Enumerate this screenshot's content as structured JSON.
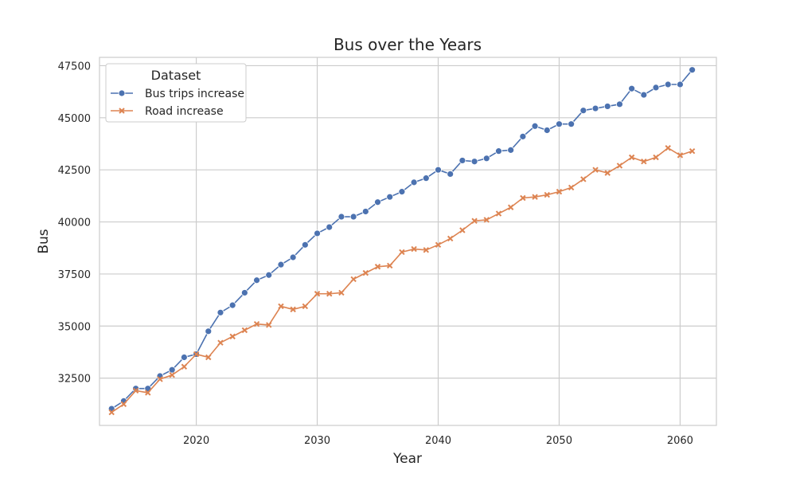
{
  "chart_data": {
    "type": "line",
    "title": "Bus over the Years",
    "xlabel": "Year",
    "ylabel": "Bus",
    "xlim": [
      2012,
      2063
    ],
    "ylim": [
      30230,
      47900
    ],
    "x_ticks": [
      2020,
      2030,
      2040,
      2050,
      2060
    ],
    "y_ticks": [
      32500,
      35000,
      37500,
      40000,
      42500,
      45000,
      47500
    ],
    "grid": true,
    "legend": {
      "title": "Dataset",
      "placement": "top-left"
    },
    "x": [
      2013,
      2014,
      2015,
      2016,
      2017,
      2018,
      2019,
      2020,
      2021,
      2022,
      2023,
      2024,
      2025,
      2026,
      2027,
      2028,
      2029,
      2030,
      2031,
      2032,
      2033,
      2034,
      2035,
      2036,
      2037,
      2038,
      2039,
      2040,
      2041,
      2042,
      2043,
      2044,
      2045,
      2046,
      2047,
      2048,
      2049,
      2050,
      2051,
      2052,
      2053,
      2054,
      2055,
      2056,
      2057,
      2058,
      2059,
      2060,
      2061
    ],
    "series": [
      {
        "name": "Bus trips increase",
        "color": "#4c72b0",
        "marker": "circle",
        "values": [
          31030,
          31400,
          32000,
          32000,
          32600,
          32900,
          33500,
          33650,
          34750,
          35650,
          36000,
          36600,
          37200,
          37450,
          37950,
          38300,
          38900,
          39450,
          39750,
          40250,
          40250,
          40500,
          40950,
          41200,
          41450,
          41900,
          42100,
          42500,
          42300,
          42950,
          42900,
          43050,
          43400,
          43450,
          44100,
          44600,
          44400,
          44700,
          44700,
          45350,
          45450,
          45550,
          45650,
          46400,
          46100,
          46450,
          46600,
          46600,
          47300
        ]
      },
      {
        "name": "Road increase",
        "color": "#dd8452",
        "marker": "x",
        "values": [
          30860,
          31250,
          31900,
          31800,
          32450,
          32650,
          33050,
          33650,
          33500,
          34200,
          34500,
          34800,
          35100,
          35050,
          35950,
          35800,
          35950,
          36550,
          36550,
          36600,
          37250,
          37550,
          37850,
          37900,
          38550,
          38700,
          38650,
          38900,
          39200,
          39600,
          40050,
          40100,
          40400,
          40700,
          41150,
          41200,
          41300,
          41450,
          41650,
          42050,
          42500,
          42350,
          42700,
          43100,
          42900,
          43100,
          43550,
          43200,
          43400
        ]
      }
    ]
  }
}
